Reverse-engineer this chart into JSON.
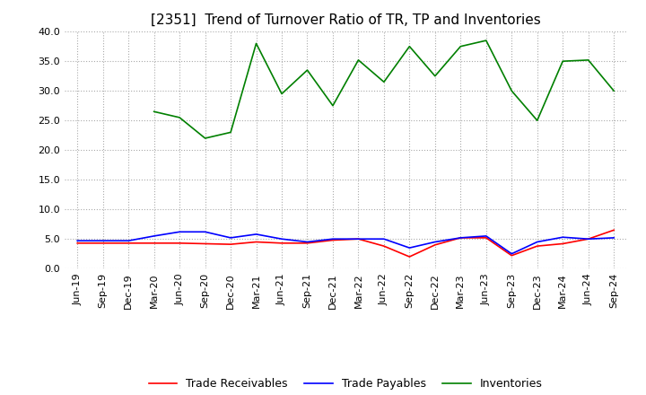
{
  "title": "[2351]  Trend of Turnover Ratio of TR, TP and Inventories",
  "x_labels": [
    "Jun-19",
    "Sep-19",
    "Dec-19",
    "Mar-20",
    "Jun-20",
    "Sep-20",
    "Dec-20",
    "Mar-21",
    "Jun-21",
    "Sep-21",
    "Dec-21",
    "Mar-22",
    "Jun-22",
    "Sep-22",
    "Dec-22",
    "Mar-23",
    "Jun-23",
    "Sep-23",
    "Dec-23",
    "Mar-24",
    "Jun-24",
    "Sep-24"
  ],
  "trade_receivables": [
    4.3,
    4.3,
    4.3,
    4.3,
    4.3,
    4.2,
    4.1,
    4.5,
    4.3,
    4.3,
    4.8,
    5.0,
    3.8,
    2.0,
    4.0,
    5.2,
    5.2,
    2.2,
    3.8,
    4.2,
    5.0,
    6.5
  ],
  "trade_payables": [
    4.7,
    4.7,
    4.7,
    5.5,
    6.2,
    6.2,
    5.2,
    5.8,
    5.0,
    4.5,
    5.0,
    5.0,
    5.0,
    3.5,
    4.5,
    5.2,
    5.5,
    2.5,
    4.5,
    5.3,
    5.0,
    5.2
  ],
  "inventories": [
    null,
    null,
    null,
    26.5,
    25.5,
    22.0,
    23.0,
    38.0,
    29.5,
    33.5,
    27.5,
    35.2,
    31.5,
    37.5,
    32.5,
    37.5,
    38.5,
    30.0,
    25.0,
    35.0,
    35.2,
    30.0
  ],
  "ylim": [
    0,
    40
  ],
  "yticks": [
    0.0,
    5.0,
    10.0,
    15.0,
    20.0,
    25.0,
    30.0,
    35.0,
    40.0
  ],
  "tr_color": "#ff0000",
  "tp_color": "#0000ff",
  "inv_color": "#008000",
  "legend_labels": [
    "Trade Receivables",
    "Trade Payables",
    "Inventories"
  ],
  "title_fontsize": 11,
  "tick_fontsize": 8,
  "legend_fontsize": 9,
  "linewidth": 1.2
}
